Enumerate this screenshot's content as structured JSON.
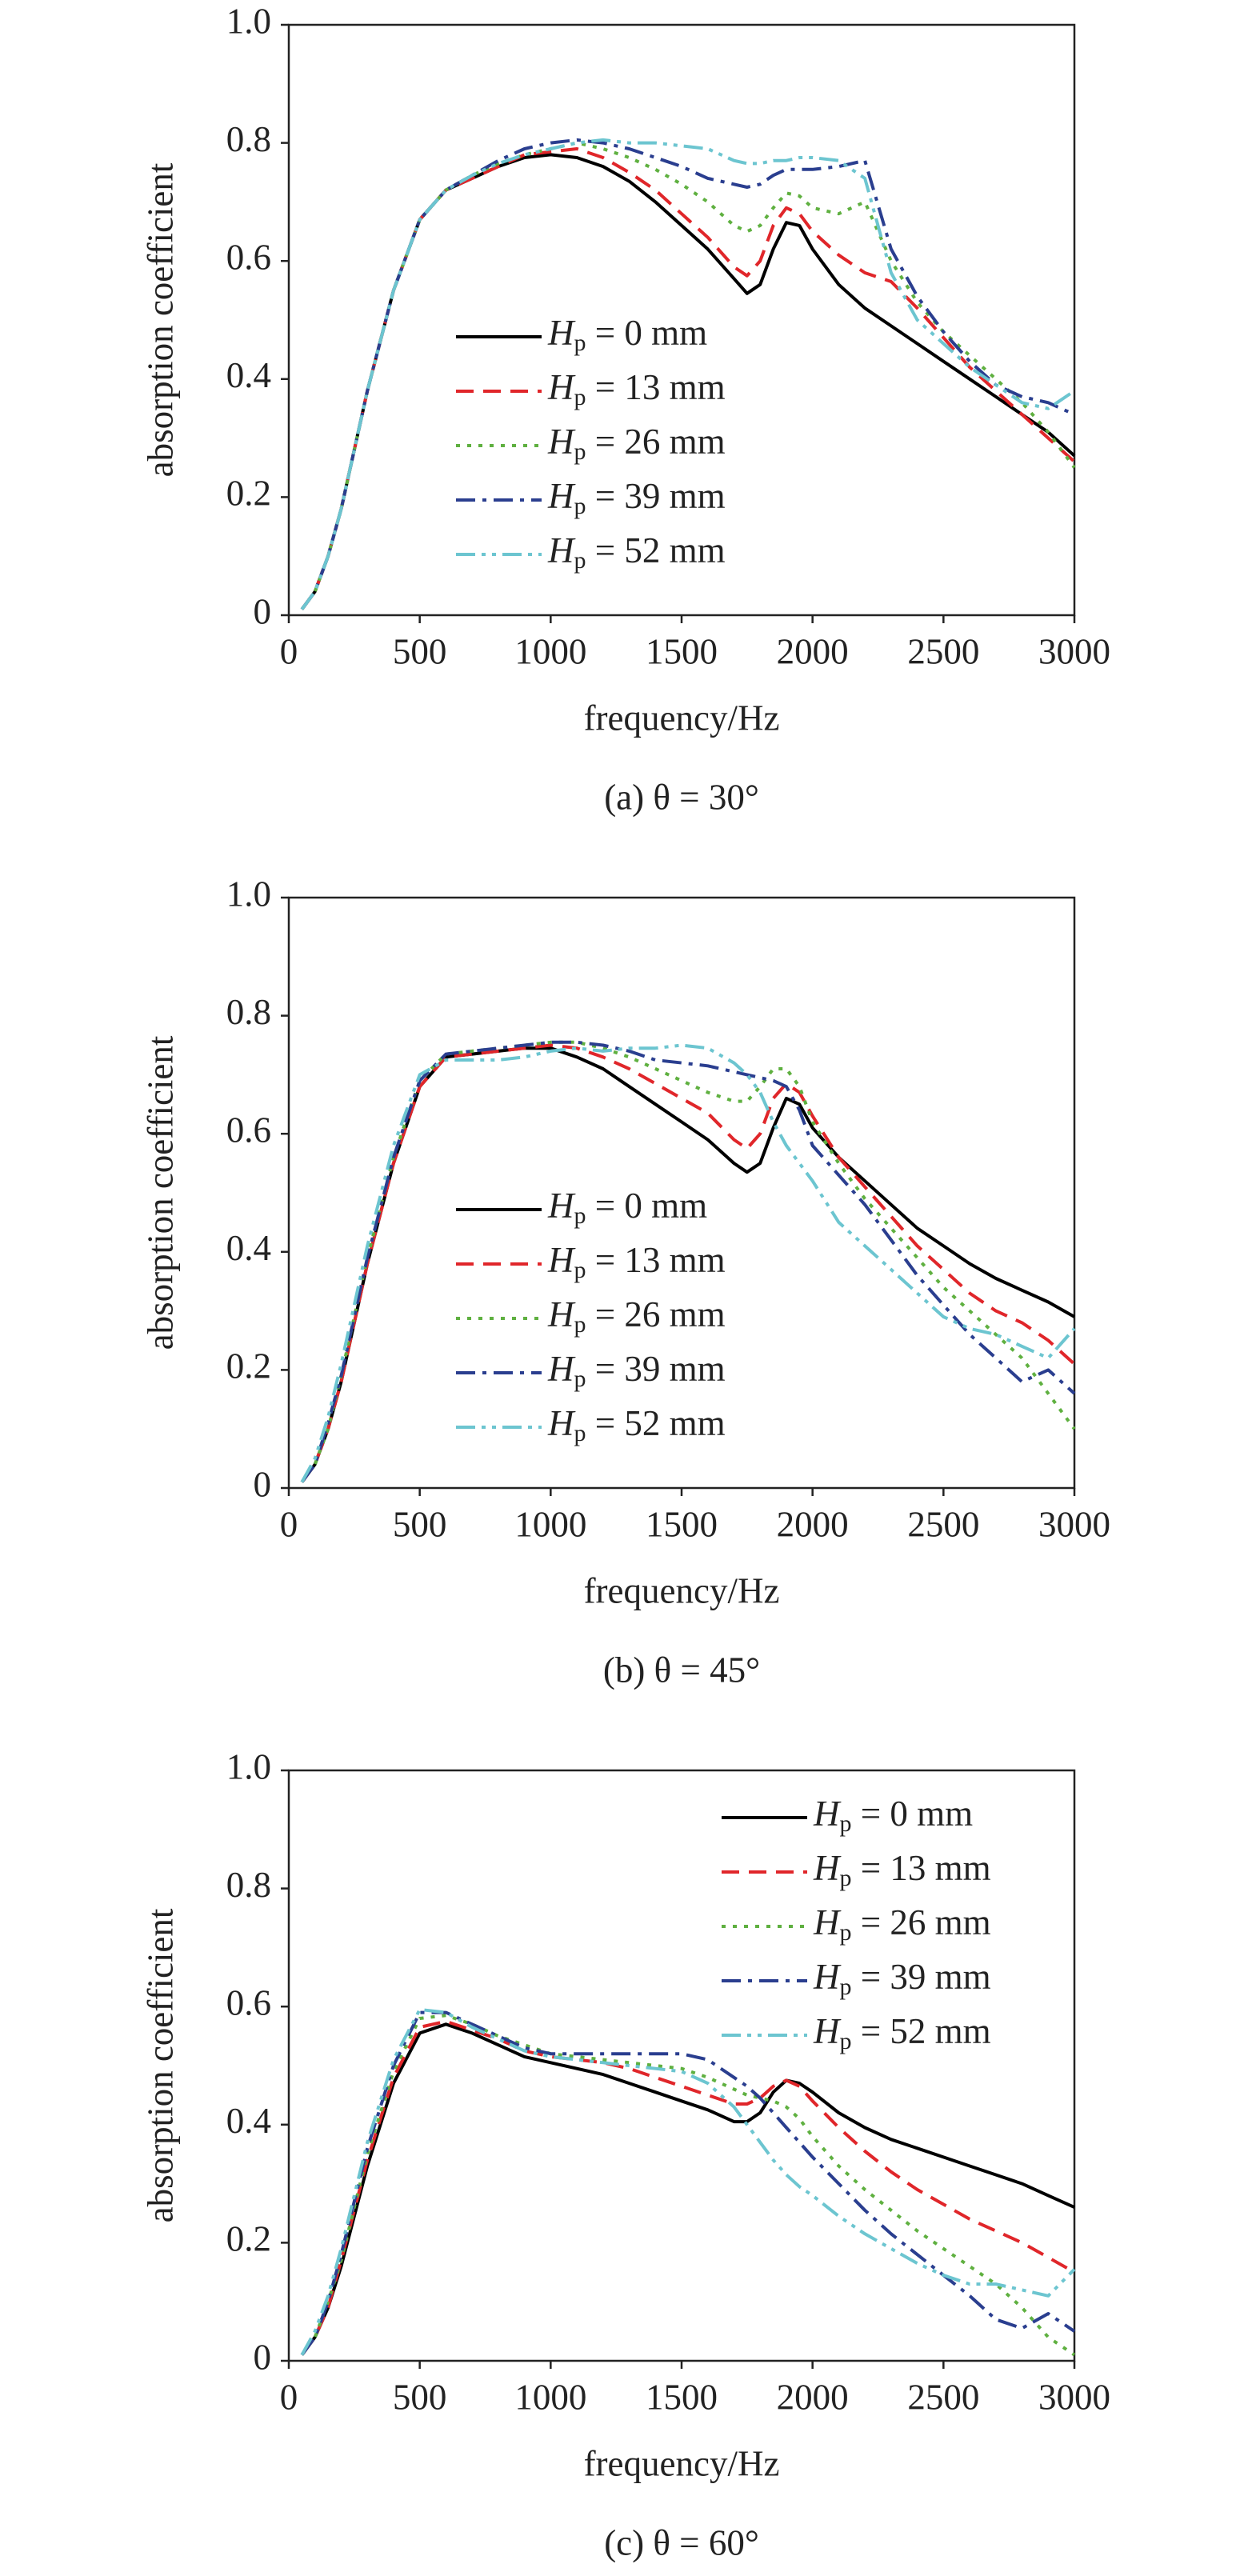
{
  "chart_data": [
    {
      "type": "line",
      "caption": "(a) θ = 30°",
      "xlabel": "frequency/Hz",
      "ylabel": "absorption coefficient",
      "xlim": [
        0,
        3000
      ],
      "ylim": [
        0,
        1
      ],
      "xticks": [
        0,
        500,
        1000,
        1500,
        2000,
        2500,
        3000
      ],
      "yticks": [
        0,
        0.2,
        0.4,
        0.6,
        0.8,
        {
          "value": 1,
          "label": "1.0"
        }
      ],
      "legend": "lower left",
      "x": [
        50,
        100,
        150,
        200,
        300,
        400,
        500,
        600,
        700,
        800,
        900,
        1000,
        1100,
        1200,
        1300,
        1400,
        1500,
        1600,
        1700,
        1750,
        1800,
        1850,
        1900,
        1950,
        2000,
        2100,
        2200,
        2300,
        2400,
        2500,
        2600,
        2700,
        2800,
        2900,
        3000
      ],
      "series": [
        {
          "name": "Hp = 0 mm",
          "color": "#000000",
          "linestyle": "solid",
          "values": [
            0.01,
            0.04,
            0.1,
            0.18,
            0.38,
            0.55,
            0.67,
            0.72,
            0.74,
            0.76,
            0.775,
            0.78,
            0.775,
            0.76,
            0.735,
            0.7,
            0.66,
            0.62,
            0.57,
            0.545,
            0.56,
            0.62,
            0.665,
            0.66,
            0.62,
            0.56,
            0.52,
            0.49,
            0.46,
            0.43,
            0.4,
            0.37,
            0.34,
            0.31,
            0.27
          ]
        },
        {
          "name": "Hp = 13 mm",
          "color": "#e0262a",
          "linestyle": "dashed",
          "values": [
            0.01,
            0.04,
            0.1,
            0.18,
            0.38,
            0.55,
            0.67,
            0.72,
            0.74,
            0.76,
            0.78,
            0.785,
            0.79,
            0.775,
            0.75,
            0.72,
            0.68,
            0.64,
            0.59,
            0.575,
            0.6,
            0.66,
            0.69,
            0.68,
            0.65,
            0.61,
            0.58,
            0.565,
            0.52,
            0.47,
            0.42,
            0.38,
            0.34,
            0.3,
            0.26
          ]
        },
        {
          "name": "Hp = 26 mm",
          "color": "#5fb040",
          "linestyle": "dotted",
          "values": [
            0.01,
            0.04,
            0.1,
            0.18,
            0.38,
            0.55,
            0.67,
            0.72,
            0.745,
            0.765,
            0.78,
            0.79,
            0.8,
            0.79,
            0.775,
            0.755,
            0.73,
            0.7,
            0.66,
            0.65,
            0.66,
            0.69,
            0.715,
            0.71,
            0.69,
            0.68,
            0.7,
            0.6,
            0.53,
            0.48,
            0.44,
            0.4,
            0.36,
            0.31,
            0.25
          ]
        },
        {
          "name": "Hp = 39 mm",
          "color": "#2a3e8f",
          "linestyle": "dashdot",
          "values": [
            0.01,
            0.04,
            0.1,
            0.18,
            0.38,
            0.55,
            0.67,
            0.72,
            0.745,
            0.77,
            0.79,
            0.8,
            0.805,
            0.8,
            0.79,
            0.775,
            0.76,
            0.74,
            0.73,
            0.725,
            0.73,
            0.745,
            0.755,
            0.755,
            0.755,
            0.76,
            0.77,
            0.62,
            0.54,
            0.48,
            0.43,
            0.39,
            0.37,
            0.36,
            0.34
          ]
        },
        {
          "name": "Hp = 52 mm",
          "color": "#6cc5d0",
          "linestyle": "dashdotdot",
          "values": [
            0.01,
            0.04,
            0.1,
            0.18,
            0.38,
            0.55,
            0.67,
            0.72,
            0.745,
            0.765,
            0.78,
            0.79,
            0.8,
            0.805,
            0.8,
            0.8,
            0.795,
            0.79,
            0.77,
            0.765,
            0.765,
            0.77,
            0.77,
            0.775,
            0.775,
            0.77,
            0.74,
            0.58,
            0.5,
            0.46,
            0.42,
            0.39,
            0.36,
            0.35,
            0.38
          ]
        }
      ]
    },
    {
      "type": "line",
      "caption": "(b) θ = 45°",
      "xlabel": "frequency/Hz",
      "ylabel": "absorption coefficient",
      "xlim": [
        0,
        3000
      ],
      "ylim": [
        0,
        1
      ],
      "xticks": [
        0,
        500,
        1000,
        1500,
        2000,
        2500,
        3000
      ],
      "yticks": [
        0,
        0.2,
        0.4,
        0.6,
        0.8,
        {
          "value": 1,
          "label": "1.0"
        }
      ],
      "legend": "lower left",
      "x": [
        50,
        100,
        150,
        200,
        300,
        400,
        500,
        600,
        700,
        800,
        900,
        1000,
        1100,
        1200,
        1300,
        1400,
        1500,
        1600,
        1700,
        1750,
        1800,
        1850,
        1900,
        1950,
        2000,
        2100,
        2200,
        2300,
        2400,
        2500,
        2600,
        2700,
        2800,
        2900,
        3000
      ],
      "series": [
        {
          "name": "Hp = 0 mm",
          "color": "#000000",
          "linestyle": "solid",
          "values": [
            0.01,
            0.04,
            0.1,
            0.18,
            0.38,
            0.55,
            0.68,
            0.73,
            0.735,
            0.74,
            0.745,
            0.745,
            0.73,
            0.71,
            0.68,
            0.65,
            0.62,
            0.59,
            0.55,
            0.535,
            0.55,
            0.61,
            0.66,
            0.65,
            0.61,
            0.56,
            0.52,
            0.48,
            0.44,
            0.41,
            0.38,
            0.355,
            0.335,
            0.315,
            0.29
          ]
        },
        {
          "name": "Hp = 13 mm",
          "color": "#e0262a",
          "linestyle": "dashed",
          "values": [
            0.01,
            0.04,
            0.1,
            0.18,
            0.38,
            0.55,
            0.68,
            0.73,
            0.735,
            0.74,
            0.745,
            0.75,
            0.745,
            0.73,
            0.71,
            0.685,
            0.66,
            0.635,
            0.59,
            0.575,
            0.6,
            0.66,
            0.685,
            0.67,
            0.63,
            0.56,
            0.51,
            0.46,
            0.41,
            0.37,
            0.33,
            0.3,
            0.28,
            0.25,
            0.21
          ]
        },
        {
          "name": "Hp = 26 mm",
          "color": "#5fb040",
          "linestyle": "dotted",
          "values": [
            0.01,
            0.04,
            0.1,
            0.19,
            0.39,
            0.56,
            0.69,
            0.735,
            0.74,
            0.745,
            0.75,
            0.755,
            0.755,
            0.745,
            0.73,
            0.71,
            0.69,
            0.67,
            0.655,
            0.655,
            0.68,
            0.71,
            0.71,
            0.68,
            0.62,
            0.55,
            0.49,
            0.44,
            0.39,
            0.34,
            0.3,
            0.26,
            0.22,
            0.16,
            0.1
          ]
        },
        {
          "name": "Hp = 39 mm",
          "color": "#2a3e8f",
          "linestyle": "dashdot",
          "values": [
            0.01,
            0.04,
            0.11,
            0.19,
            0.39,
            0.56,
            0.69,
            0.735,
            0.74,
            0.745,
            0.75,
            0.755,
            0.755,
            0.75,
            0.74,
            0.725,
            0.72,
            0.715,
            0.705,
            0.7,
            0.695,
            0.69,
            0.68,
            0.64,
            0.58,
            0.53,
            0.48,
            0.42,
            0.36,
            0.31,
            0.26,
            0.22,
            0.18,
            0.2,
            0.16
          ]
        },
        {
          "name": "Hp = 52 mm",
          "color": "#6cc5d0",
          "linestyle": "dashdotdot",
          "values": [
            0.01,
            0.05,
            0.12,
            0.21,
            0.41,
            0.58,
            0.7,
            0.725,
            0.725,
            0.725,
            0.73,
            0.74,
            0.745,
            0.74,
            0.745,
            0.745,
            0.75,
            0.745,
            0.72,
            0.7,
            0.67,
            0.62,
            0.58,
            0.55,
            0.52,
            0.45,
            0.41,
            0.37,
            0.33,
            0.29,
            0.27,
            0.26,
            0.24,
            0.22,
            0.27
          ]
        }
      ]
    },
    {
      "type": "line",
      "caption": "(c) θ = 60°",
      "xlabel": "frequency/Hz",
      "ylabel": "absorption coefficient",
      "xlim": [
        0,
        3000
      ],
      "ylim": [
        0,
        1
      ],
      "xticks": [
        0,
        500,
        1000,
        1500,
        2000,
        2500,
        3000
      ],
      "yticks": [
        0,
        0.2,
        0.4,
        0.6,
        0.8,
        {
          "value": 1,
          "label": "1.0"
        }
      ],
      "legend": "upper right",
      "x": [
        50,
        100,
        150,
        200,
        300,
        400,
        500,
        600,
        700,
        800,
        900,
        1000,
        1100,
        1200,
        1300,
        1400,
        1500,
        1600,
        1700,
        1750,
        1800,
        1850,
        1900,
        1950,
        2000,
        2100,
        2200,
        2300,
        2400,
        2500,
        2600,
        2700,
        2800,
        2900,
        3000
      ],
      "series": [
        {
          "name": "Hp = 0 mm",
          "color": "#000000",
          "linestyle": "solid",
          "values": [
            0.01,
            0.04,
            0.09,
            0.16,
            0.33,
            0.47,
            0.555,
            0.57,
            0.555,
            0.535,
            0.515,
            0.505,
            0.495,
            0.485,
            0.47,
            0.455,
            0.44,
            0.425,
            0.405,
            0.405,
            0.42,
            0.455,
            0.475,
            0.47,
            0.455,
            0.42,
            0.395,
            0.375,
            0.36,
            0.345,
            0.33,
            0.315,
            0.3,
            0.28,
            0.26
          ]
        },
        {
          "name": "Hp = 13 mm",
          "color": "#e0262a",
          "linestyle": "dashed",
          "values": [
            0.01,
            0.04,
            0.09,
            0.17,
            0.34,
            0.48,
            0.565,
            0.575,
            0.56,
            0.545,
            0.525,
            0.515,
            0.51,
            0.505,
            0.495,
            0.48,
            0.465,
            0.45,
            0.435,
            0.435,
            0.445,
            0.465,
            0.475,
            0.465,
            0.44,
            0.395,
            0.355,
            0.32,
            0.29,
            0.265,
            0.24,
            0.22,
            0.2,
            0.175,
            0.15
          ]
        },
        {
          "name": "Hp = 26 mm",
          "color": "#5fb040",
          "linestyle": "dotted",
          "values": [
            0.01,
            0.04,
            0.1,
            0.17,
            0.35,
            0.49,
            0.58,
            0.585,
            0.57,
            0.55,
            0.535,
            0.52,
            0.515,
            0.51,
            0.505,
            0.5,
            0.495,
            0.48,
            0.46,
            0.45,
            0.445,
            0.44,
            0.43,
            0.41,
            0.38,
            0.33,
            0.29,
            0.255,
            0.22,
            0.19,
            0.16,
            0.13,
            0.09,
            0.04,
            0.01
          ]
        },
        {
          "name": "Hp = 39 mm",
          "color": "#2a3e8f",
          "linestyle": "dashdot",
          "values": [
            0.01,
            0.04,
            0.1,
            0.18,
            0.36,
            0.5,
            0.59,
            0.59,
            0.57,
            0.55,
            0.53,
            0.52,
            0.52,
            0.52,
            0.52,
            0.52,
            0.52,
            0.51,
            0.48,
            0.465,
            0.445,
            0.42,
            0.395,
            0.37,
            0.345,
            0.3,
            0.255,
            0.215,
            0.18,
            0.145,
            0.11,
            0.07,
            0.055,
            0.08,
            0.05
          ]
        },
        {
          "name": "Hp = 52 mm",
          "color": "#6cc5d0",
          "linestyle": "dashdotdot",
          "values": [
            0.01,
            0.05,
            0.11,
            0.19,
            0.37,
            0.51,
            0.595,
            0.59,
            0.565,
            0.545,
            0.525,
            0.515,
            0.51,
            0.505,
            0.5,
            0.495,
            0.49,
            0.47,
            0.43,
            0.4,
            0.37,
            0.34,
            0.315,
            0.295,
            0.28,
            0.245,
            0.215,
            0.19,
            0.165,
            0.145,
            0.13,
            0.13,
            0.12,
            0.11,
            0.155
          ]
        }
      ]
    }
  ]
}
